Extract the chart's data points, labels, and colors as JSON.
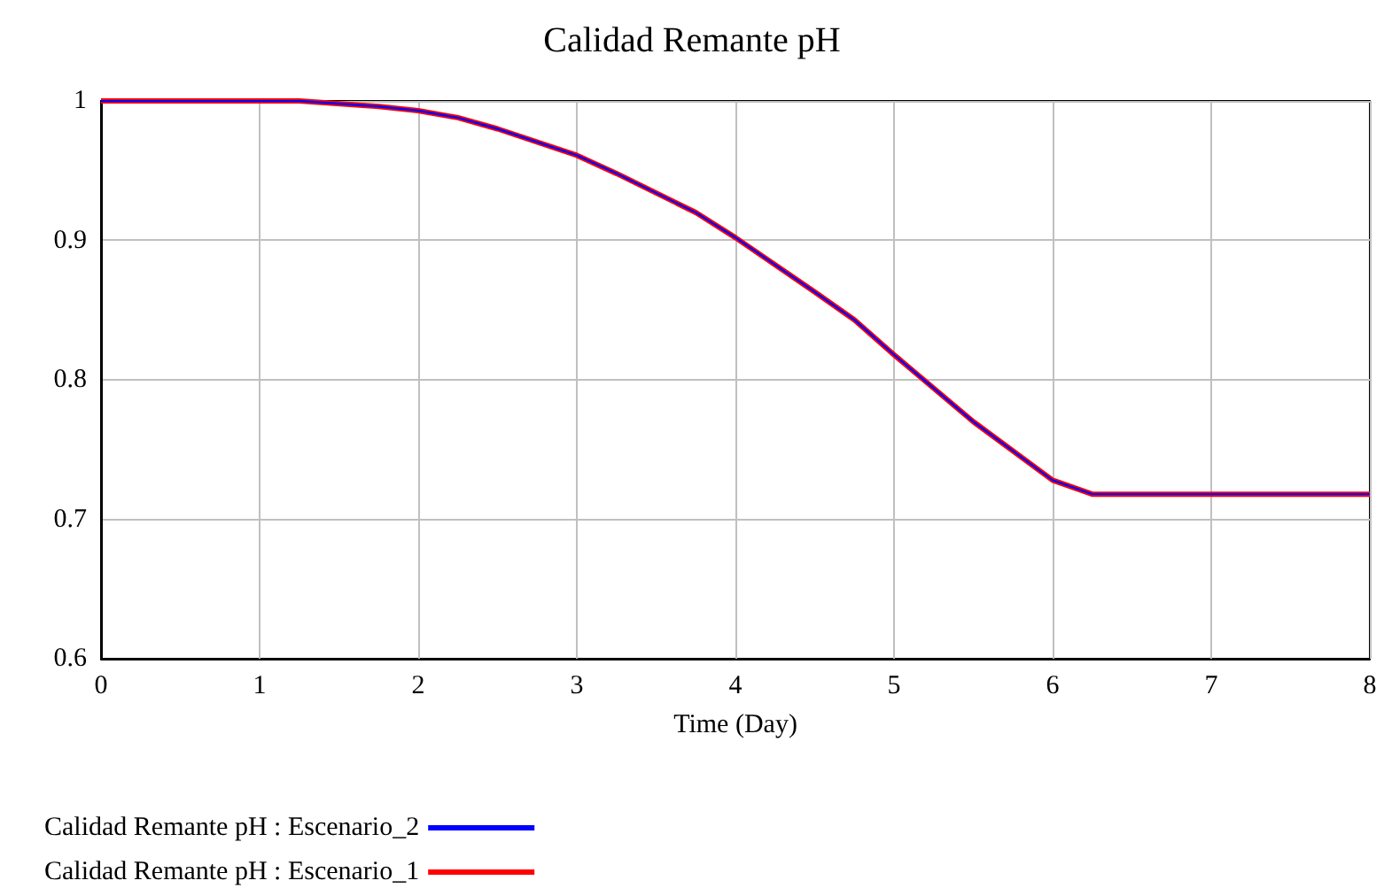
{
  "chart_data": {
    "type": "line",
    "title": "Calidad Remante pH",
    "xlabel": "Time (Day)",
    "xlim": [
      0,
      8
    ],
    "xticks": [
      0,
      1,
      2,
      3,
      4,
      5,
      6,
      7,
      8
    ],
    "ylim": [
      0.6,
      1
    ],
    "yticks": [
      0.6,
      0.7,
      0.8,
      0.9,
      1
    ],
    "grid": true,
    "legend": "bottom",
    "marker": "none",
    "line_style": "solid",
    "series": [
      {
        "name": "Calidad Remante pH : Escenario_2",
        "color": "#0000ff",
        "x": [
          0,
          0.5,
          1,
          1.25,
          1.75,
          2,
          2.25,
          2.5,
          3,
          3.25,
          3.75,
          4,
          4.5,
          4.75,
          5,
          5.5,
          6,
          6.25,
          7,
          8
        ],
        "values": [
          1,
          1,
          1,
          1,
          0.996,
          0.993,
          0.988,
          0.98,
          0.961,
          0.948,
          0.92,
          0.902,
          0.863,
          0.843,
          0.818,
          0.77,
          0.728,
          0.718,
          0.718,
          0.718
        ]
      },
      {
        "name": "Calidad Remante pH : Escenario_1",
        "color": "#ff0000",
        "x": [
          0,
          0.5,
          1,
          1.25,
          1.75,
          2,
          2.25,
          2.5,
          3,
          3.25,
          3.75,
          4,
          4.5,
          4.75,
          5,
          5.5,
          6,
          6.25,
          7,
          8
        ],
        "values": [
          1,
          1,
          1,
          1,
          0.996,
          0.993,
          0.988,
          0.98,
          0.961,
          0.948,
          0.92,
          0.902,
          0.863,
          0.843,
          0.818,
          0.77,
          0.728,
          0.718,
          0.718,
          0.718
        ]
      }
    ]
  }
}
